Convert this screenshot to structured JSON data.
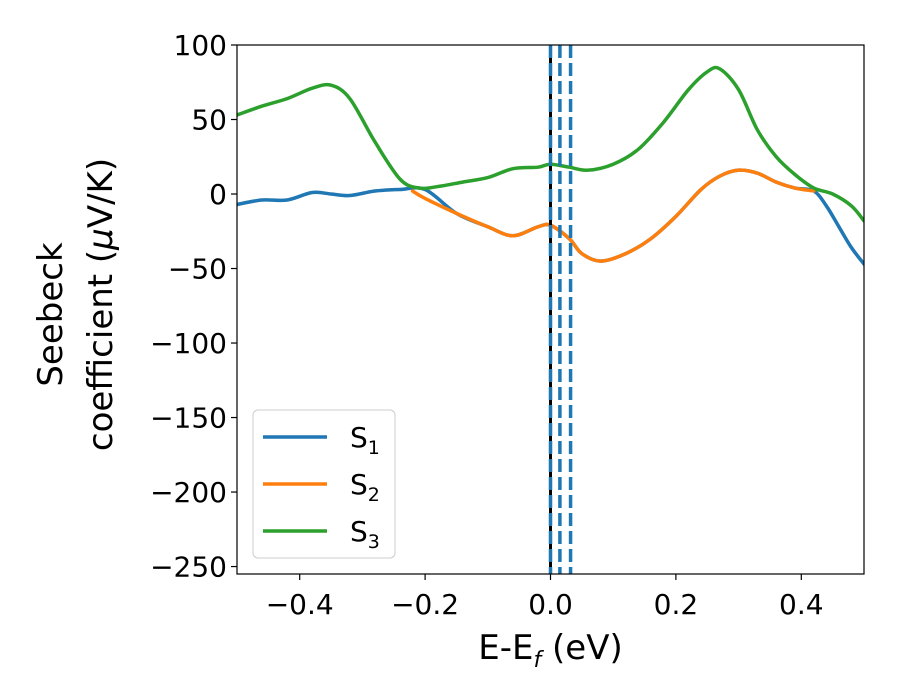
{
  "chart_data": {
    "type": "line",
    "title": "",
    "xlabel": "E-E",
    "xlabel_sub": "f",
    "xlabel_unit": " (eV)",
    "ylabel_line1": "Seebeck",
    "ylabel_line2": "coefficient  (",
    "ylabel_mu": "μ",
    "ylabel_unit": "V/K)",
    "xlim": [
      -0.5,
      0.5
    ],
    "ylim": [
      -255,
      100
    ],
    "xticks": [
      -0.4,
      -0.2,
      0.0,
      0.2,
      0.4
    ],
    "xtick_labels": [
      "−0.4",
      "−0.2",
      "0.0",
      "0.2",
      "0.4"
    ],
    "yticks": [
      100,
      50,
      0,
      -50,
      -100,
      -150,
      -200,
      -250
    ],
    "ytick_labels": [
      "100",
      "50",
      "0",
      "−50",
      "−100",
      "−150",
      "−200",
      "−250"
    ],
    "grid": false,
    "legend_position": "lower-left",
    "vline_solid": {
      "x": 0.0,
      "color": "#000000"
    },
    "vlines_dashed": {
      "x": [
        0.0,
        0.015,
        0.032
      ],
      "color": "#1f77b4"
    },
    "series": [
      {
        "name": "S",
        "sub": "1",
        "color": "#1f77b4",
        "x": [
          -0.5,
          -0.46,
          -0.42,
          -0.38,
          -0.35,
          -0.32,
          -0.28,
          -0.24,
          -0.2,
          -0.15,
          -0.1,
          -0.06,
          -0.02,
          0.0,
          0.03,
          0.05,
          0.08,
          0.12,
          0.16,
          0.2,
          0.24,
          0.27,
          0.3,
          0.33,
          0.36,
          0.39,
          0.42,
          0.44,
          0.46,
          0.48,
          0.5
        ],
        "y": [
          -7,
          -4,
          -4,
          1,
          0,
          -1,
          2,
          3,
          3,
          -13,
          -22,
          -28,
          -22,
          -21,
          -30,
          -40,
          -45,
          -40,
          -30,
          -15,
          3,
          12,
          16,
          14,
          8,
          4,
          2,
          -8,
          -22,
          -36,
          -47
        ]
      },
      {
        "name": "S",
        "sub": "2",
        "color": "#ff7f0e",
        "x": [
          -0.22,
          -0.2,
          -0.15,
          -0.1,
          -0.06,
          -0.02,
          0.0,
          0.03,
          0.05,
          0.08,
          0.12,
          0.16,
          0.2,
          0.24,
          0.27,
          0.3,
          0.33,
          0.36,
          0.39,
          0.42
        ],
        "y": [
          2,
          -3,
          -13,
          -22,
          -28,
          -22,
          -21,
          -30,
          -40,
          -45,
          -40,
          -30,
          -15,
          3,
          12,
          16,
          14,
          8,
          4,
          2
        ]
      },
      {
        "name": "S",
        "sub": "3",
        "color": "#2ca02c",
        "x": [
          -0.5,
          -0.46,
          -0.42,
          -0.38,
          -0.35,
          -0.32,
          -0.28,
          -0.24,
          -0.21,
          -0.18,
          -0.14,
          -0.1,
          -0.06,
          -0.02,
          0.0,
          0.03,
          0.06,
          0.1,
          0.14,
          0.18,
          0.22,
          0.25,
          0.27,
          0.3,
          0.33,
          0.36,
          0.39,
          0.42,
          0.45,
          0.48,
          0.5
        ],
        "y": [
          53,
          59,
          64,
          71,
          73,
          64,
          35,
          10,
          4,
          5,
          8,
          11,
          17,
          18,
          20,
          18,
          16,
          20,
          30,
          48,
          70,
          82,
          84,
          70,
          43,
          25,
          13,
          4,
          0,
          -8,
          -18
        ]
      }
    ]
  }
}
